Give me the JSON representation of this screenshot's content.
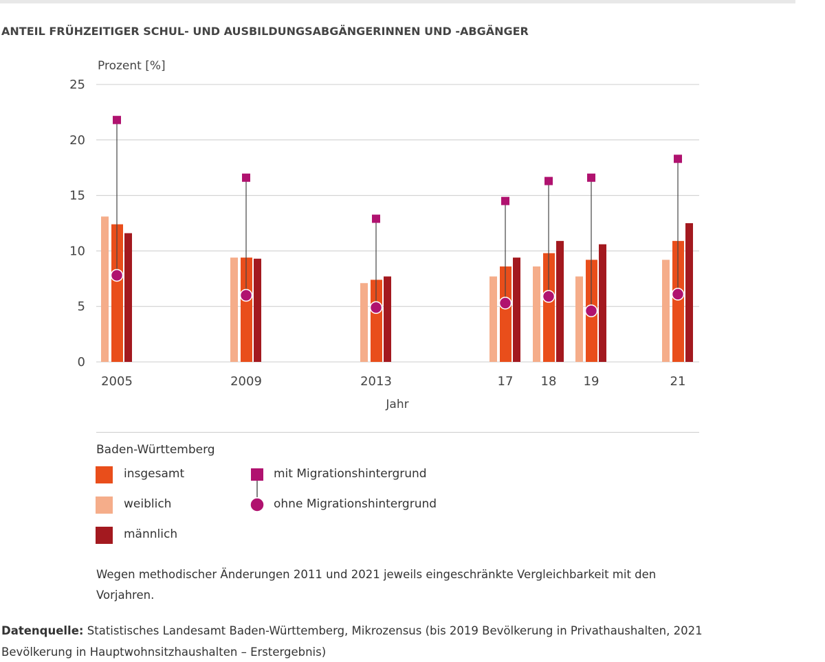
{
  "title": "ANTEIL FRÜHZEITIGER SCHUL- UND AUSBILDUNGSABGÄNGERINNEN UND -ABGÄNGER",
  "chart_data": {
    "type": "bar",
    "ylabel": "Prozent [%]",
    "xlabel": "Jahr",
    "ylim": [
      0,
      25
    ],
    "yticks": [
      "0",
      "5",
      "10",
      "15",
      "20",
      "25"
    ],
    "categories": [
      "2005",
      "2009",
      "2013",
      "17",
      "18",
      "19",
      "21"
    ],
    "grid": true,
    "series": [
      {
        "name": "weiblich",
        "kind": "bar",
        "color": "#f5ad8a",
        "values": [
          13.1,
          9.4,
          7.1,
          7.7,
          8.6,
          7.7,
          9.2
        ]
      },
      {
        "name": "insgesamt",
        "kind": "bar",
        "color": "#e94e1b",
        "values": [
          12.4,
          9.4,
          7.4,
          8.6,
          9.8,
          9.2,
          10.9
        ]
      },
      {
        "name": "männlich",
        "kind": "bar",
        "color": "#a3191f",
        "values": [
          11.6,
          9.3,
          7.7,
          9.4,
          10.9,
          10.6,
          12.5
        ]
      },
      {
        "name": "mit Migrationshintergrund",
        "kind": "square",
        "color": "#b0126f",
        "values": [
          21.8,
          16.6,
          12.9,
          14.5,
          16.3,
          16.6,
          18.3
        ]
      },
      {
        "name": "ohne Migrationshintergrund",
        "kind": "circle",
        "color": "#b0126f",
        "values": [
          7.8,
          6.0,
          4.9,
          5.3,
          5.9,
          4.6,
          6.1
        ]
      }
    ],
    "legend_title": "Baden-Württemberg",
    "legend_placement": "bottom"
  },
  "note": "Wegen methodischer Änderungen 2011 und 2021 jeweils eingeschränkte Vergleichbarkeit mit den Vorjahren.",
  "source_label": "Datenquelle:",
  "source_text": " Statistisches Landesamt Baden-Württemberg, Mikrozensus (bis 2019 Bevölkerung in Privathaushalten, 2021 Bevölkerung in Hauptwohnsitzhaushalten – Erstergebnis)"
}
